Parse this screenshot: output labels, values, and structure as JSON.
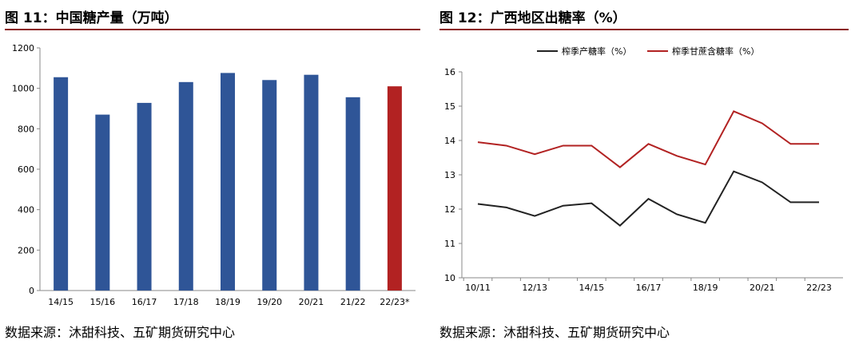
{
  "figures": {
    "left_title": "图 11：中国糖产量（万吨）",
    "right_title": "图 12：广西地区出糖率（%）",
    "left_source": "数据来源：沐甜科技、五矿期货研究中心",
    "right_source": "数据来源：沐甜科技、五矿期货研究中心"
  },
  "chart_data": [
    {
      "type": "bar",
      "title": "图 11：中国糖产量（万吨）",
      "categories": [
        "14/15",
        "15/16",
        "16/17",
        "17/18",
        "18/19",
        "19/20",
        "20/21",
        "21/22",
        "22/23*"
      ],
      "values": [
        1055,
        870,
        928,
        1031,
        1076,
        1041,
        1067,
        956,
        1010
      ],
      "bar_colors": [
        "#2f5597",
        "#2f5597",
        "#2f5597",
        "#2f5597",
        "#2f5597",
        "#2f5597",
        "#2f5597",
        "#2f5597",
        "#b22222"
      ],
      "ylim": [
        0,
        1200
      ],
      "yticks": [
        0,
        200,
        400,
        600,
        800,
        1000,
        1200
      ],
      "grid": false,
      "legend": "none"
    },
    {
      "type": "line",
      "title": "图 12：广西地区出糖率（%）",
      "x": [
        "10/11",
        "11/12",
        "12/13",
        "13/14",
        "14/15",
        "15/16",
        "16/17",
        "17/18",
        "18/19",
        "19/20",
        "20/21",
        "21/22",
        "22/23"
      ],
      "xtick_labels": [
        "10/11",
        "12/13",
        "14/15",
        "16/17",
        "18/19",
        "20/21",
        "22/23"
      ],
      "ylim": [
        10,
        16
      ],
      "yticks": [
        10,
        11,
        12,
        13,
        14,
        15,
        16
      ],
      "grid": false,
      "legend": "top",
      "series": [
        {
          "name": "榨季产糖率（%）",
          "color": "#222222",
          "values": [
            12.15,
            12.05,
            11.8,
            12.1,
            12.17,
            11.52,
            12.3,
            11.85,
            11.6,
            13.1,
            12.78,
            12.2,
            12.2
          ]
        },
        {
          "name": "榨季甘蔗含糖率（%）",
          "color": "#b22222",
          "values": [
            13.95,
            13.85,
            13.6,
            13.85,
            13.85,
            13.22,
            13.9,
            13.55,
            13.3,
            14.85,
            14.5,
            13.9,
            13.9
          ]
        }
      ]
    }
  ]
}
